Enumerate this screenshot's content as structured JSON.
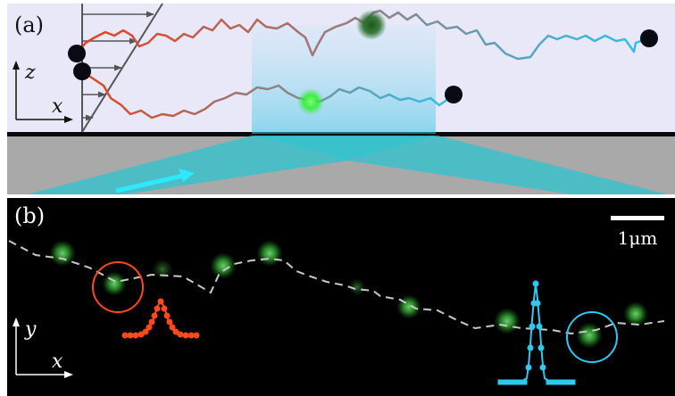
{
  "panel_a": {
    "label": "(a)",
    "axis_vertical": "z",
    "axis_horizontal": "x",
    "colors": {
      "background": "#e8e8f8",
      "substrate": "#a8a8a8",
      "light_beam": "#2ec4cf",
      "chain_start": "#e8401c",
      "chain_mid": "#9a7a7a",
      "chain_end": "#2ec0ea",
      "bead": "#0a0a14",
      "fluorophore_top": "#1f6b1f",
      "fluorophore_bottom": "#3cff3c"
    }
  },
  "panel_b": {
    "label": "(b)",
    "axis_vertical": "y",
    "axis_horizontal": "x",
    "scale_bar_label": "1μm",
    "colors": {
      "background": "#000000",
      "spot": "#3aa83a",
      "trace": "#c8c8c8",
      "left_marker": "#ff4b1c",
      "right_marker": "#2ec8f0"
    }
  }
}
